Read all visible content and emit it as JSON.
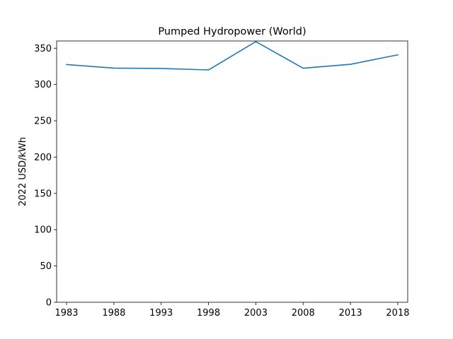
{
  "chart_data": {
    "type": "line",
    "title": "Pumped Hydropower (World)",
    "xlabel": "",
    "ylabel": "2022 USD/kWh",
    "x": [
      1983,
      1988,
      1993,
      1998,
      2003,
      2008,
      2013,
      2018
    ],
    "series": [
      {
        "values": [
          327.5,
          322.6,
          322.1,
          320.1,
          359.1,
          322.5,
          327.8,
          340.9
        ],
        "color": "#1f77b4"
      }
    ],
    "xticks": [
      "1983",
      "1988",
      "1993",
      "1998",
      "2003",
      "2008",
      "2013",
      "2018"
    ],
    "yticks": [
      0,
      50,
      100,
      150,
      200,
      250,
      300,
      350
    ],
    "ylim": [
      0,
      360
    ],
    "grid": false,
    "legend": "none"
  }
}
